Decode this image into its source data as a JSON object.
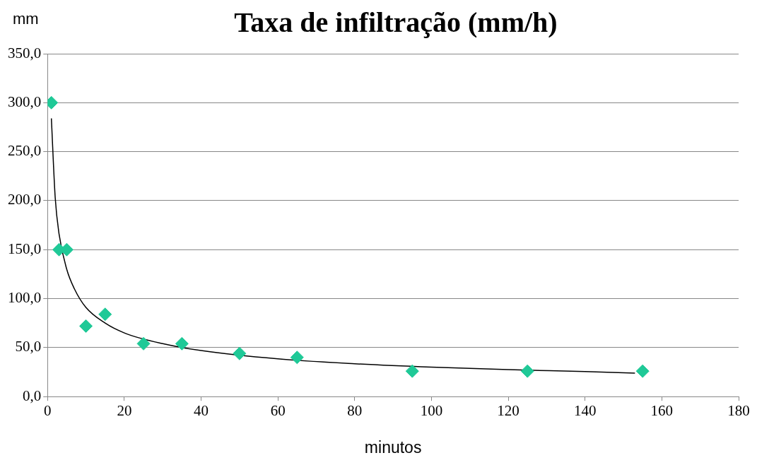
{
  "chart_data": {
    "type": "scatter",
    "title": "Taxa de infiltração (mm/h)",
    "xlabel": "minutos",
    "ylabel": "mm",
    "xlim": [
      0,
      180
    ],
    "xticks": [
      0,
      20,
      40,
      60,
      80,
      100,
      120,
      140,
      160,
      180
    ],
    "ylim": [
      0,
      350
    ],
    "yticks": [
      {
        "value": 0,
        "label": "0,0"
      },
      {
        "value": 50,
        "label": "50,0"
      },
      {
        "value": 100,
        "label": "100,0"
      },
      {
        "value": 150,
        "label": "150,0"
      },
      {
        "value": 200,
        "label": "200,0"
      },
      {
        "value": 250,
        "label": "250,0"
      },
      {
        "value": 300,
        "label": "300,0"
      },
      {
        "value": 350,
        "label": "350,0"
      }
    ],
    "grid": "y",
    "legend": false,
    "series": [
      {
        "type": "scatter",
        "color": "#1fc997",
        "marker": "diamond",
        "x": [
          1,
          3,
          5,
          10,
          15,
          25,
          35,
          50,
          65,
          95,
          125,
          155
        ],
        "values": [
          300,
          150,
          150,
          72,
          84,
          54,
          54,
          44,
          40,
          26,
          26,
          26
        ]
      },
      {
        "type": "line",
        "color": "#000000",
        "marker": "none",
        "line_style": "solid",
        "x": [
          1,
          2,
          3,
          5,
          7,
          10,
          15,
          20,
          30,
          40,
          60,
          80,
          100,
          120,
          140,
          153
        ],
        "values": [
          284,
          203,
          166,
          130,
          110,
          91,
          75,
          65,
          54,
          47,
          38.5,
          33.5,
          30,
          27.5,
          25.5,
          24
        ]
      }
    ]
  }
}
